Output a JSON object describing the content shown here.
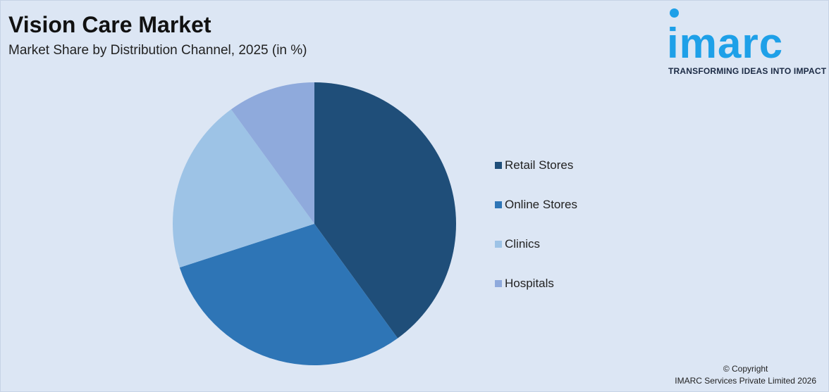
{
  "header": {
    "title": "Vision Care Market",
    "subtitle": "Market Share by Distribution Channel, 2025 (in %)"
  },
  "logo": {
    "wordmark": "imarc",
    "tagline": "TRANSFORMING IDEAS INTO IMPACT",
    "color": "#1ea0e8"
  },
  "chart_data": {
    "type": "pie",
    "title": "Vision Care Market",
    "subtitle": "Market Share by Distribution Channel, 2025 (in %)",
    "categories": [
      "Retail Stores",
      "Online Stores",
      "Clinics",
      "Hospitals"
    ],
    "values": [
      40,
      30,
      20,
      10
    ],
    "colors": [
      "#1f4e79",
      "#2e75b6",
      "#9dc3e6",
      "#8faadc"
    ],
    "start_angle_deg": 0,
    "direction": "clockwise",
    "legend_position": "right"
  },
  "footer": {
    "copyright_line1": "© Copyright",
    "copyright_line2": "IMARC Services Private Limited 2026"
  }
}
